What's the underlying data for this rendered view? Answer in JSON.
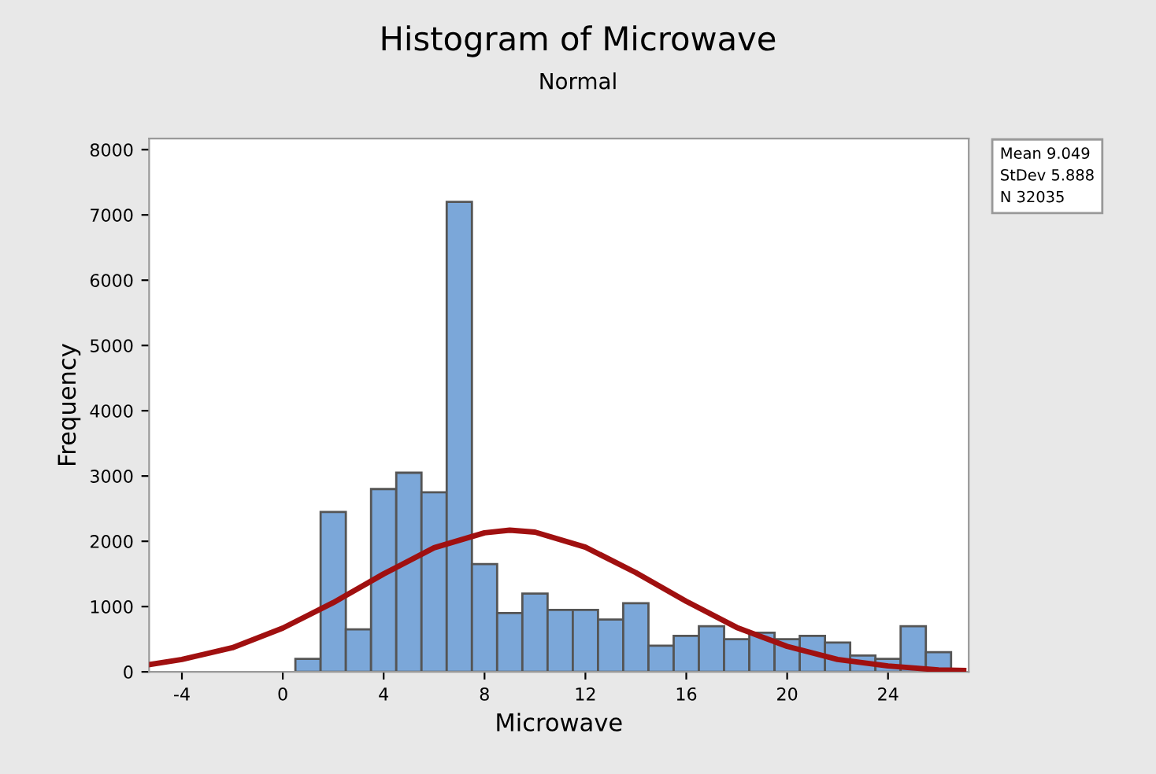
{
  "chart_data": {
    "type": "histogram",
    "title": "Histogram of Microwave",
    "subtitle": "Normal",
    "xlabel": "Microwave",
    "ylabel": "Frequency",
    "bins": [
      0.5,
      1.5,
      2.5,
      3.5,
      4.5,
      5.5,
      6.5,
      7.5,
      8.5,
      9.5,
      10.5,
      11.5,
      12.5,
      13.5,
      14.5,
      15.5,
      16.5,
      17.5,
      18.5,
      19.5,
      20.5,
      21.5,
      22.5,
      23.5,
      24.5,
      25.5,
      26.5
    ],
    "values": [
      200,
      2450,
      650,
      2800,
      3050,
      2750,
      7200,
      1650,
      900,
      1200,
      950,
      950,
      800,
      1050,
      400,
      550,
      700,
      500,
      600,
      500,
      550,
      450,
      250,
      200,
      700,
      300
    ],
    "color": "#7ba7d9",
    "series": [
      {
        "type": "line",
        "color": "#a01010",
        "x": [
          -5.3,
          -4,
          -2,
          0,
          2,
          4,
          6,
          8,
          9,
          10,
          12,
          14,
          16,
          18,
          20,
          22,
          24,
          26,
          27
        ],
        "values": [
          110,
          190,
          370,
          670,
          1060,
          1500,
          1900,
          2130,
          2170,
          2140,
          1910,
          1520,
          1080,
          680,
          390,
          190,
          90,
          30,
          20
        ]
      }
    ],
    "xlim": [
      -5.3,
      27.2
    ],
    "ylim": [
      0,
      8170
    ],
    "xticks": [
      -4,
      0,
      4,
      8,
      12,
      16,
      20,
      24
    ],
    "yticks": [
      0,
      1000,
      2000,
      3000,
      4000,
      5000,
      6000,
      7000,
      8000
    ],
    "grid": false,
    "legend": false,
    "annotations": [
      "Mean 9.049",
      "StDev 5.888",
      "N 32035"
    ]
  }
}
